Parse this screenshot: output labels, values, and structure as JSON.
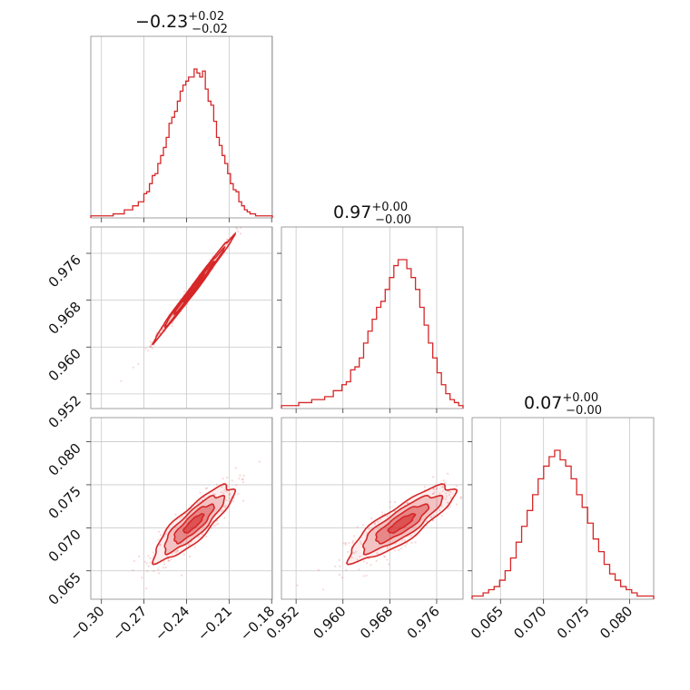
{
  "chart_data": {
    "type": "corner",
    "color": "#d62728",
    "parameters": [
      {
        "title_main": "−0.23",
        "title_plus": "+0.02",
        "title_minus": "−0.02",
        "range": [
          -0.3075,
          -0.1795
        ],
        "ticks": [
          -0.3,
          -0.27,
          -0.24,
          -0.21,
          -0.18
        ],
        "tick_labels": [
          "−0.30",
          "−0.27",
          "−0.24",
          "−0.21",
          "−0.18"
        ]
      },
      {
        "title_main": "0.97",
        "title_plus": "+0.00",
        "title_minus": "−0.00",
        "range": [
          0.9495,
          0.9805
        ],
        "ticks": [
          0.952,
          0.96,
          0.968,
          0.976
        ],
        "tick_labels": [
          "0.952",
          "0.960",
          "0.968",
          "0.976"
        ]
      },
      {
        "title_main": "0.07",
        "title_plus": "+0.00",
        "title_minus": "−0.00",
        "range": [
          0.0617,
          0.0828
        ],
        "ticks": [
          0.065,
          0.07,
          0.075,
          0.08
        ],
        "tick_labels": [
          "0.065",
          "0.070",
          "0.075",
          "0.080"
        ]
      }
    ],
    "histograms": [
      {
        "edges": [
          -0.3075,
          -0.1795
        ],
        "counts": [
          1,
          1,
          1,
          1,
          1,
          1,
          1,
          1,
          2,
          2,
          2,
          2,
          4,
          4,
          4,
          6,
          6,
          8,
          8,
          12,
          13,
          17,
          21,
          22,
          27,
          31,
          35,
          40,
          47,
          50,
          53,
          58,
          63,
          66,
          68,
          70,
          70,
          74,
          72,
          70,
          73,
          64,
          58,
          56,
          48,
          40,
          36,
          31,
          27,
          22,
          17,
          14,
          13,
          8,
          6,
          4,
          3,
          2,
          2,
          1,
          1,
          1,
          1,
          1,
          1
        ]
      },
      {
        "edges": [
          0.9495,
          0.9805
        ],
        "counts": [
          1,
          1,
          1,
          1,
          2,
          2,
          2,
          3,
          3,
          3,
          4,
          4,
          6,
          6,
          8,
          9,
          13,
          14,
          17,
          22,
          26,
          30,
          34,
          36,
          40,
          44,
          48,
          50,
          50,
          47,
          44,
          40,
          34,
          28,
          22,
          17,
          12,
          8,
          5,
          3,
          2,
          1
        ]
      },
      {
        "edges": [
          0.0617,
          0.0828
        ],
        "counts": [
          1,
          1,
          2,
          3,
          4,
          6,
          9,
          13,
          18,
          23,
          28,
          33,
          38,
          42,
          45,
          47,
          44,
          42,
          38,
          33,
          29,
          24,
          19,
          15,
          11,
          8,
          6,
          4,
          3,
          2,
          1,
          1,
          1
        ]
      }
    ],
    "pairs": [
      {
        "x_param": 0,
        "y_param": 1,
        "mean": [
          -0.235,
          0.97
        ],
        "std": [
          0.014,
          0.0045
        ],
        "correlation": 0.995
      },
      {
        "x_param": 0,
        "y_param": 2,
        "mean": [
          -0.235,
          0.0705
        ],
        "std": [
          0.014,
          0.0022
        ],
        "correlation": 0.85
      },
      {
        "x_param": 1,
        "y_param": 2,
        "mean": [
          0.97,
          0.0705
        ],
        "std": [
          0.0045,
          0.0022
        ],
        "correlation": 0.85
      }
    ],
    "contour_levels_sigma": [
      0.5,
      1.0,
      1.5,
      2.0
    ],
    "grid": true
  }
}
